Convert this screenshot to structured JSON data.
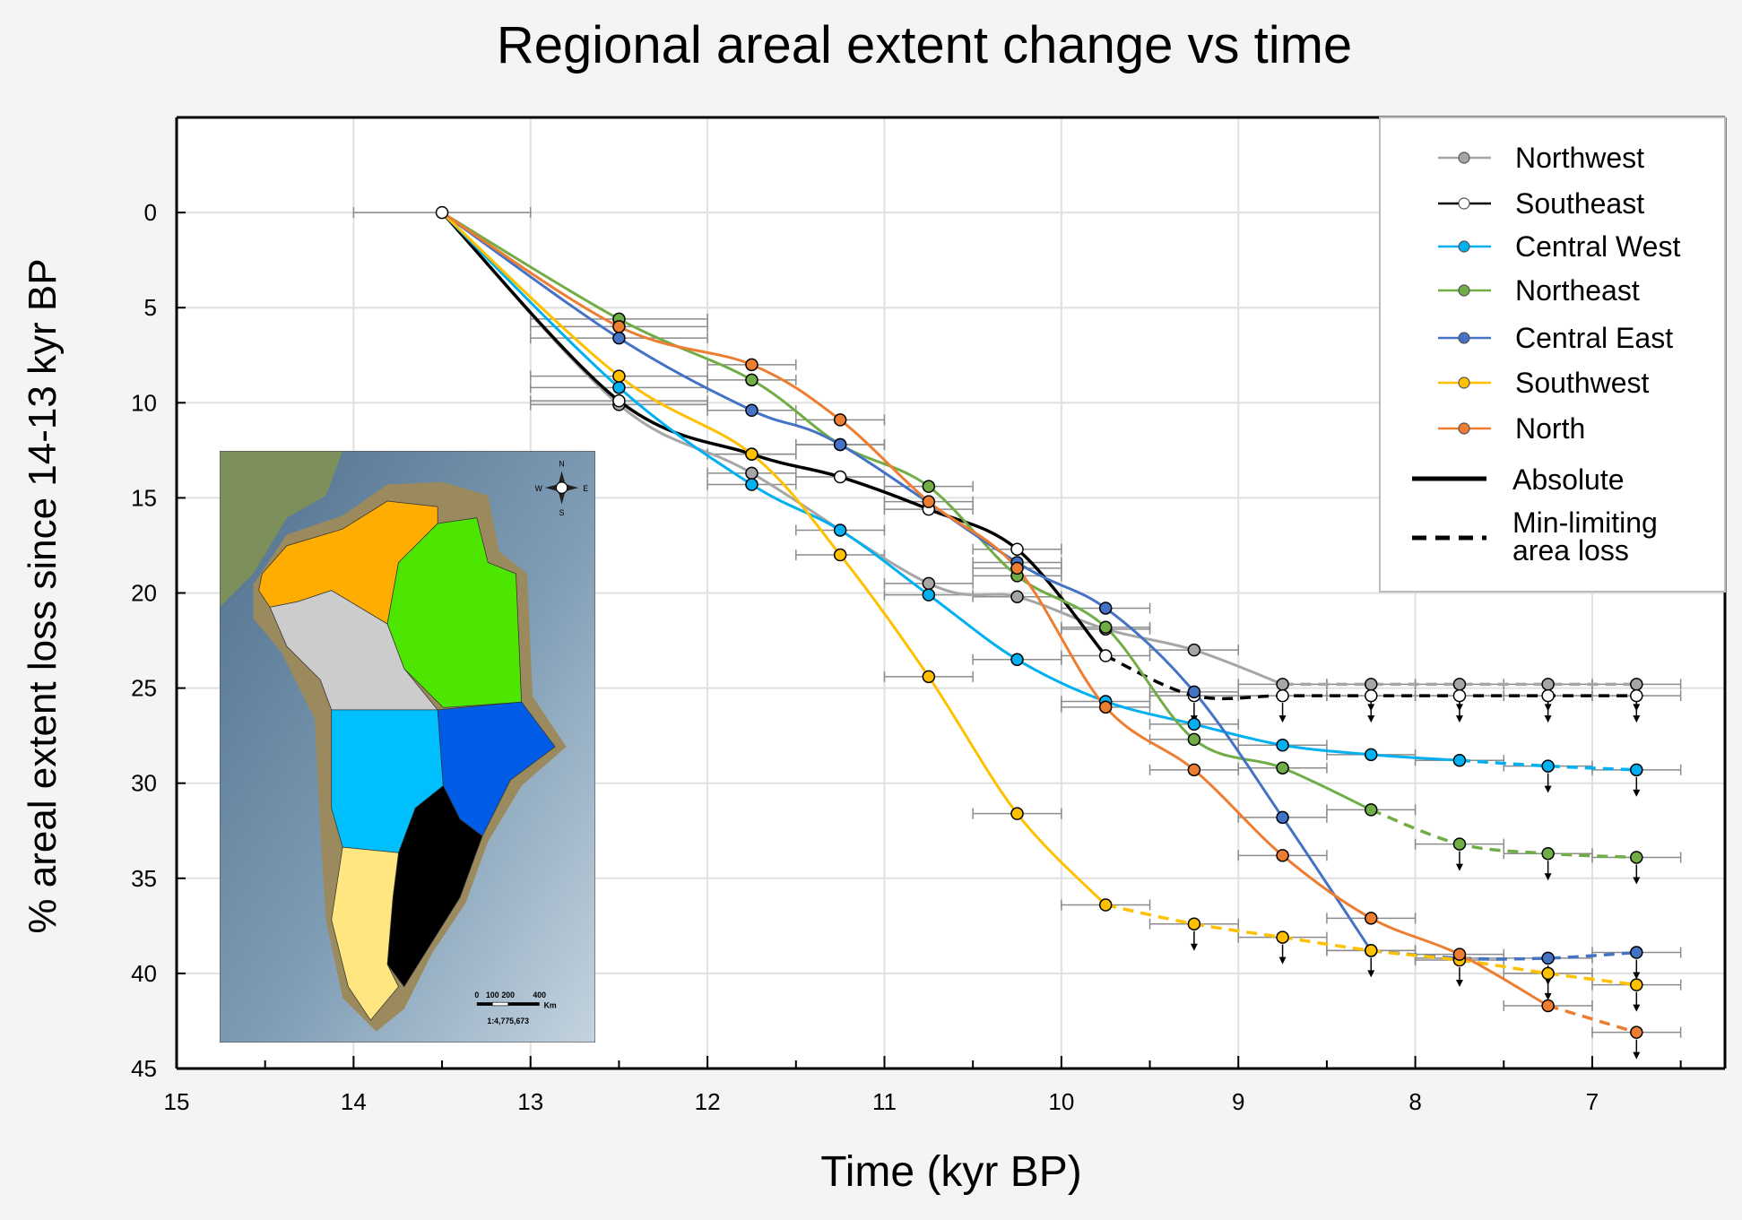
{
  "chart_data": {
    "type": "line",
    "title": "Regional areal extent change vs time",
    "xlabel": "Time (kyr BP)",
    "ylabel": "% areal extent loss since 14-13 kyr BP",
    "xlim": [
      15,
      6.25
    ],
    "ylim": [
      -5,
      45
    ],
    "y_inverted": true,
    "grid": true,
    "legend_position": "top-right",
    "x_ticks": [
      15,
      14,
      13,
      12,
      11,
      10,
      9,
      8,
      7
    ],
    "y_ticks": [
      0,
      5,
      10,
      15,
      20,
      25,
      30,
      35,
      40,
      45
    ],
    "x": [
      13.5,
      12.5,
      11.75,
      11.25,
      10.75,
      10.25,
      9.75,
      9.25,
      8.75,
      8.25,
      7.75,
      7.25,
      6.75
    ],
    "x_error": [
      0.5,
      0.5,
      0.25,
      0.25,
      0.25,
      0.25,
      0.25,
      0.25,
      0.25,
      0.25,
      0.25,
      0.25,
      0.25
    ],
    "series": [
      {
        "name": "Northwest",
        "color": "#a6a6a6",
        "marker_fill": "#a6a6a6",
        "values": [
          0,
          10.1,
          13.7,
          null,
          19.5,
          20.2,
          21.9,
          23.0,
          24.8,
          24.8,
          24.8,
          24.8,
          24.8
        ],
        "absolute_until": 8.75,
        "min_limiting_from": 8.25
      },
      {
        "name": "Southeast",
        "color": "#000000",
        "marker_fill": "#ffffff",
        "values": [
          0,
          9.9,
          12.7,
          13.9,
          15.6,
          17.7,
          23.3,
          25.4,
          25.4,
          25.4,
          25.4,
          25.4,
          25.4
        ],
        "absolute_until": 9.75,
        "min_limiting_from": 9.25
      },
      {
        "name": "Central West",
        "color": "#00b0f0",
        "marker_fill": "#00b0f0",
        "values": [
          0,
          9.2,
          14.3,
          16.7,
          20.1,
          23.5,
          25.7,
          26.9,
          28.0,
          28.5,
          28.8,
          29.1,
          29.3
        ],
        "absolute_until": 7.75,
        "min_limiting_from": 7.25
      },
      {
        "name": "Northeast",
        "color": "#70ad47",
        "marker_fill": "#70ad47",
        "values": [
          0,
          5.6,
          8.8,
          12.2,
          14.4,
          19.1,
          21.8,
          27.7,
          29.2,
          31.4,
          33.2,
          33.7,
          33.9
        ],
        "absolute_until": 8.25,
        "min_limiting_from": 7.75
      },
      {
        "name": "Central East",
        "color": "#4472c4",
        "marker_fill": "#4472c4",
        "values": [
          0,
          6.6,
          10.4,
          12.2,
          null,
          18.4,
          20.8,
          25.2,
          31.8,
          38.8,
          39.2,
          39.2,
          38.9
        ],
        "absolute_until": 8.25,
        "min_limiting_from": 7.25
      },
      {
        "name": "Southwest",
        "color": "#ffc000",
        "marker_fill": "#ffc000",
        "values": [
          0,
          8.6,
          12.7,
          18.0,
          24.4,
          31.6,
          36.4,
          37.4,
          38.1,
          38.8,
          39.3,
          40.0,
          40.6
        ],
        "absolute_until": 9.75,
        "min_limiting_from": 9.25
      },
      {
        "name": "North",
        "color": "#ed7d31",
        "marker_fill": "#ed7d31",
        "values": [
          0,
          6.0,
          8.0,
          10.9,
          15.2,
          18.7,
          26.0,
          29.3,
          33.8,
          37.1,
          39.0,
          41.7,
          43.1
        ],
        "absolute_until": 7.25,
        "min_limiting_from": 6.75
      }
    ],
    "legend_extra": [
      {
        "label": "Absolute",
        "style": "solid"
      },
      {
        "label_line1": "Min-limiting",
        "label_line2": "area loss",
        "style": "dashed"
      }
    ]
  },
  "inset_map": {
    "compass": {
      "n": "N",
      "s": "S",
      "e": "E",
      "w": "W"
    },
    "scale_labels": [
      "0",
      "100",
      "200",
      "400"
    ],
    "scale_unit": "Km",
    "scale_ratio": "1:4,775,673",
    "region_colors": {
      "north": "#ffad00",
      "northeast": "#4ce600",
      "northwest": "#cccccc",
      "central_west": "#00bfff",
      "central_east": "#005ce6",
      "southeast": "#000000",
      "southwest": "#ffe680"
    }
  }
}
